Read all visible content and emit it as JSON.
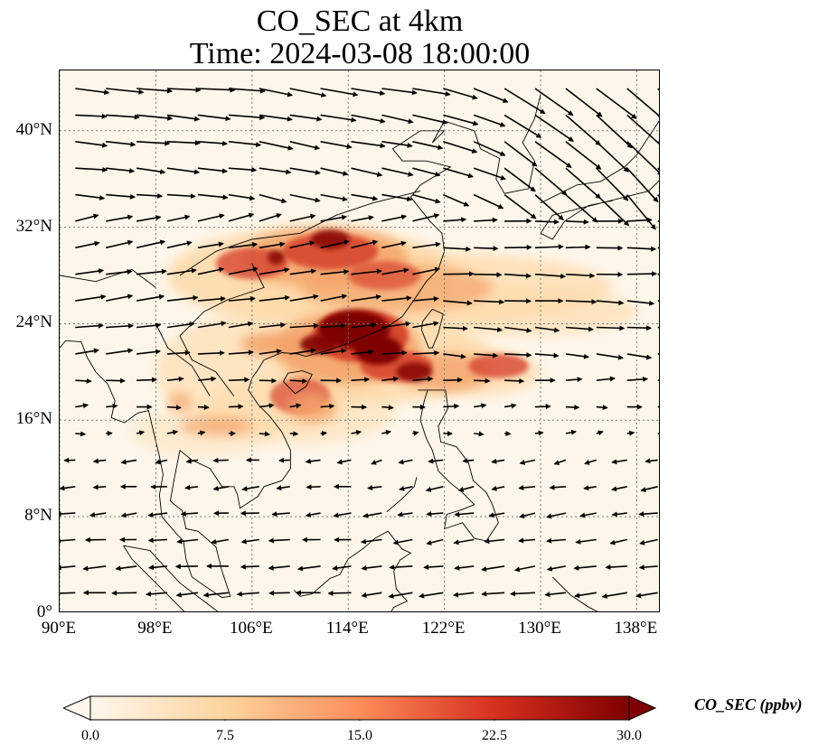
{
  "title": {
    "line1": "CO_SEC at 4km",
    "line2": "Time: 2024-03-08 18:00:00"
  },
  "map": {
    "extent": {
      "lon_min": 90,
      "lon_max": 140,
      "lat_min": 0,
      "lat_max": 45
    },
    "lat_ticks": [
      {
        "value": 40,
        "label": "40°N"
      },
      {
        "value": 32,
        "label": "32°N"
      },
      {
        "value": 24,
        "label": "24°N"
      },
      {
        "value": 16,
        "label": "16°N"
      },
      {
        "value": 8,
        "label": "8°N"
      },
      {
        "value": 0,
        "label": "0°"
      }
    ],
    "lon_ticks": [
      {
        "value": 90,
        "label": "90°E"
      },
      {
        "value": 98,
        "label": "98°E"
      },
      {
        "value": 106,
        "label": "106°E"
      },
      {
        "value": 114,
        "label": "114°E"
      },
      {
        "value": 122,
        "label": "122°E"
      },
      {
        "value": 130,
        "label": "130°E"
      },
      {
        "value": 138,
        "label": "138°E"
      }
    ],
    "gridlines": true,
    "plume_colors": [
      "#fdd9a8",
      "#f4a46a",
      "#d7462f",
      "#7f0000"
    ]
  },
  "colorbar": {
    "label": "CO_SEC (ppbv)",
    "min": 0.0,
    "max": 30.0,
    "ticks": [
      "0.0",
      "7.5",
      "15.0",
      "22.5",
      "30.0"
    ],
    "colors": [
      "#fff7ec",
      "#fdd49e",
      "#fc8d59",
      "#d7301f",
      "#7f0000"
    ]
  }
}
